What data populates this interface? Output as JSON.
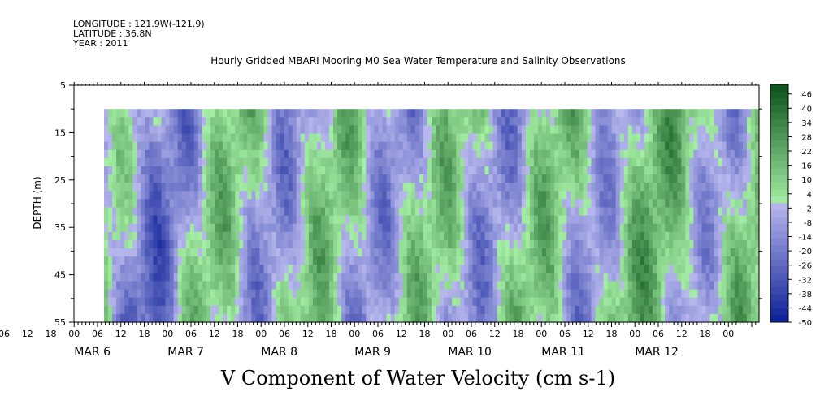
{
  "header": {
    "longitude": "LONGITUDE : 121.9W(-121.9)",
    "latitude": "LATITUDE : 36.8N",
    "year": "YEAR : 2011"
  },
  "chart_data": {
    "type": "heatmap",
    "title": "Hourly Gridded MBARI Mooring M0 Sea Water Temperature and Salinity Observations",
    "xlabel_bottom": "V Component of Water Velocity (cm s-1)",
    "ylabel": "DEPTH (m)",
    "y_axis": {
      "range": [
        5,
        55
      ],
      "inverted": true,
      "ticks": [
        5,
        15,
        25,
        35,
        45,
        55
      ]
    },
    "x_axis": {
      "hour_ticks": [
        "06",
        "12",
        "18",
        "00",
        "06",
        "12",
        "18",
        "00",
        "06",
        "12",
        "18",
        "00",
        "06",
        "12",
        "18",
        "00",
        "06",
        "12",
        "18",
        "00",
        "06",
        "12",
        "18",
        "00",
        "06",
        "12",
        "18",
        "00",
        "06",
        "12",
        "18",
        "00"
      ],
      "day_labels": [
        "MAR  6",
        "MAR  7",
        "MAR  8",
        "MAR  9",
        "MAR 10",
        "MAR 11",
        "MAR 12"
      ]
    },
    "data_extent": {
      "depth_top": 10,
      "depth_bottom": 55
    },
    "colorbar": {
      "labels": [
        "46",
        "40",
        "34",
        "28",
        "22",
        "16",
        "10",
        "4",
        "-2",
        "-8",
        "-14",
        "-20",
        "-26",
        "-32",
        "-38",
        "-44",
        "-50"
      ],
      "min": -50,
      "max": 50
    }
  }
}
